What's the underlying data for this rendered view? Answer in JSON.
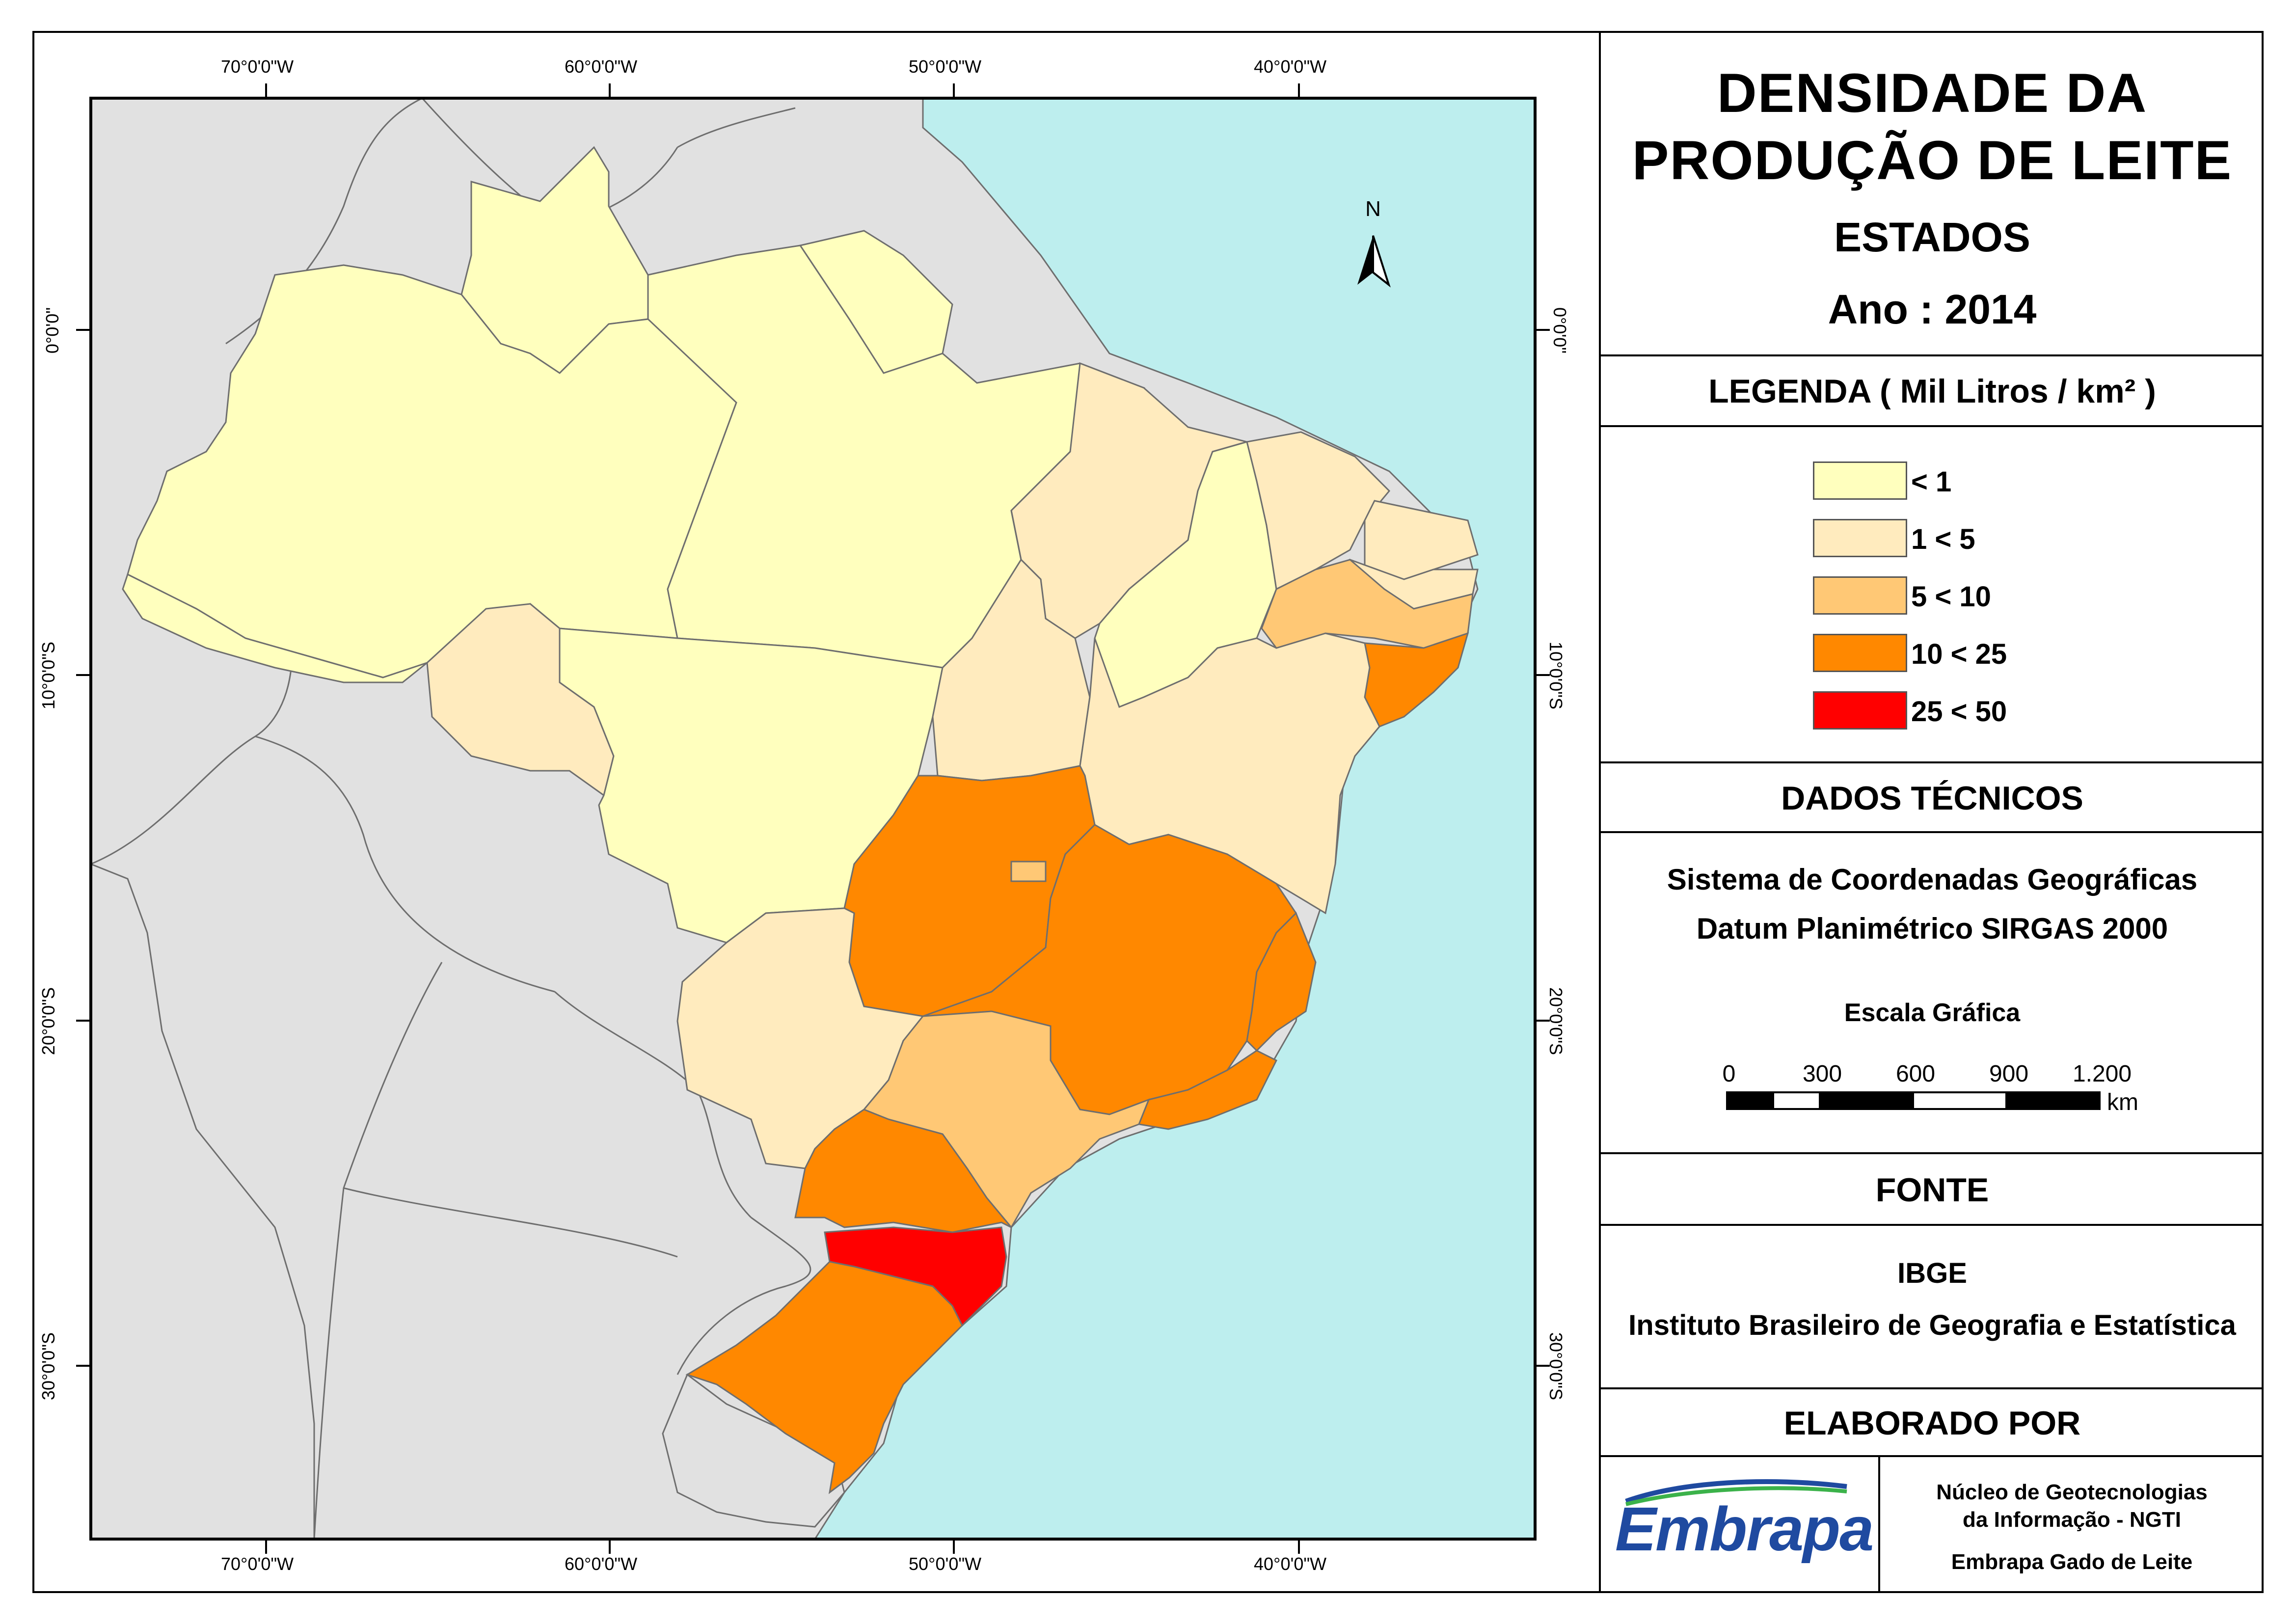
{
  "title": {
    "line1": "DENSIDADE DA",
    "line2": "PRODUÇÃO DE LEITE",
    "subtitle": "ESTADOS",
    "year": "Ano : 2014"
  },
  "legend": {
    "title": "LEGENDA ( Mil Litros / km² )",
    "classes": [
      {
        "label": "< 1",
        "color": "#ffffbe"
      },
      {
        "label": "1 < 5",
        "color": "#ffebbe"
      },
      {
        "label": "5 < 10",
        "color": "#ffc875"
      },
      {
        "label": "10 < 25",
        "color": "#ff8800"
      },
      {
        "label": "25 < 50",
        "color": "#ff0000"
      }
    ]
  },
  "technical": {
    "title": "DADOS TÉCNICOS",
    "line1": "Sistema de Coordenadas Geográficas",
    "line2": "Datum Planimétrico SIRGAS 2000",
    "scale_title": "Escala Gráfica",
    "scale_ticks": [
      "0",
      "300",
      "600",
      "900",
      "1.200"
    ],
    "scale_unit": "km"
  },
  "source": {
    "title": "FONTE",
    "line1": "IBGE",
    "line2": "Instituto Brasileiro de Geografia e Estatística"
  },
  "author": {
    "title": "ELABORADO POR",
    "logo_text": "Embrapa",
    "line1": "Núcleo de Geotecnologias",
    "line2": "da Informação - NGTI",
    "line3": "Embrapa Gado de Leite"
  },
  "map": {
    "north_label": "N",
    "longitudes": [
      "70°0'0\"W",
      "60°0'0\"W",
      "50°0'0\"W",
      "40°0'0\"W"
    ],
    "latitudes": [
      "0°0'0\"",
      "10°0'0\"S",
      "20°0'0\"S",
      "30°0'0\"S"
    ],
    "colors": {
      "ocean": "#bdeeee",
      "land": "#e1e1e1",
      "border": "#6e6e6e"
    }
  }
}
